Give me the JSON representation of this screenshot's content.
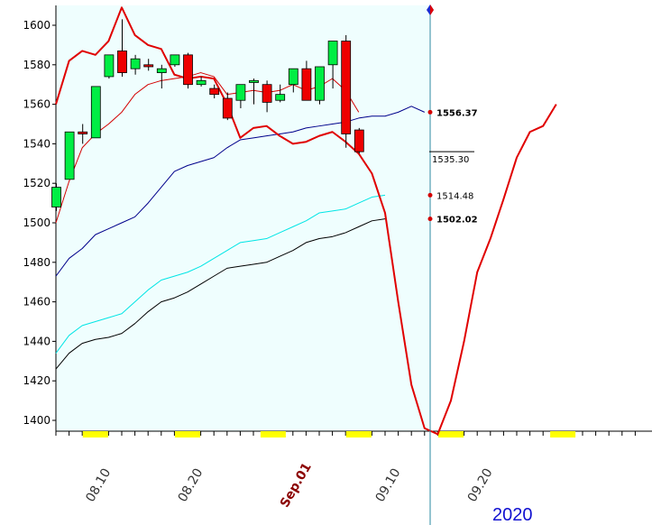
{
  "chart_data": {
    "type": "candlestick",
    "year_label": "2020",
    "y_ticks": [
      1400,
      1420,
      1440,
      1460,
      1480,
      1500,
      1520,
      1540,
      1560,
      1580,
      1600
    ],
    "ylim": [
      1394,
      1610
    ],
    "x_ticks": [
      {
        "label": "08.10",
        "i": 3
      },
      {
        "label": "08.20",
        "i": 10
      },
      {
        "label": "Sep.01",
        "i": 18,
        "month": true
      },
      {
        "label": "09.10",
        "i": 25
      },
      {
        "label": "09.20",
        "i": 32
      }
    ],
    "candles": [
      {
        "o": 1508,
        "h": 1520,
        "l": 1506,
        "c": 1518
      },
      {
        "o": 1522,
        "h": 1546,
        "l": 1522,
        "c": 1546
      },
      {
        "o": 1546,
        "h": 1550,
        "l": 1540,
        "c": 1545
      },
      {
        "o": 1543,
        "h": 1569,
        "l": 1543,
        "c": 1569
      },
      {
        "o": 1574,
        "h": 1585,
        "l": 1573,
        "c": 1585
      },
      {
        "o": 1587,
        "h": 1603,
        "l": 1574,
        "c": 1576
      },
      {
        "o": 1578,
        "h": 1585,
        "l": 1575,
        "c": 1583
      },
      {
        "o": 1580,
        "h": 1583,
        "l": 1577,
        "c": 1579
      },
      {
        "o": 1576,
        "h": 1580,
        "l": 1568,
        "c": 1578
      },
      {
        "o": 1580,
        "h": 1585,
        "l": 1579,
        "c": 1585
      },
      {
        "o": 1585,
        "h": 1586,
        "l": 1568,
        "c": 1570
      },
      {
        "o": 1570,
        "h": 1574,
        "l": 1569,
        "c": 1572
      },
      {
        "o": 1568,
        "h": 1570,
        "l": 1563,
        "c": 1565
      },
      {
        "o": 1563,
        "h": 1566,
        "l": 1552,
        "c": 1553
      },
      {
        "o": 1562,
        "h": 1570,
        "l": 1558,
        "c": 1570
      },
      {
        "o": 1571,
        "h": 1573,
        "l": 1560,
        "c": 1572
      },
      {
        "o": 1570,
        "h": 1572,
        "l": 1556,
        "c": 1561
      },
      {
        "o": 1562,
        "h": 1570,
        "l": 1561,
        "c": 1565
      },
      {
        "o": 1570,
        "h": 1578,
        "l": 1566,
        "c": 1578
      },
      {
        "o": 1578,
        "h": 1582,
        "l": 1562,
        "c": 1562
      },
      {
        "o": 1562,
        "h": 1579,
        "l": 1560,
        "c": 1579
      },
      {
        "o": 1580,
        "h": 1592,
        "l": 1568,
        "c": 1592
      },
      {
        "o": 1592,
        "h": 1595,
        "l": 1538,
        "c": 1545
      },
      {
        "o": 1547,
        "h": 1548,
        "l": 1535,
        "c": 1536
      }
    ],
    "series": [
      {
        "color": "#d40000",
        "width": 1,
        "values": [
          1500,
          1521,
          1538,
          1545,
          1550,
          1556,
          1565,
          1570,
          1572,
          1573,
          1574,
          1576,
          1574,
          1565,
          1566,
          1567,
          1566,
          1567,
          1570,
          1567,
          1569,
          1573,
          1567,
          1556
        ]
      },
      {
        "color": "#00008b",
        "width": 1,
        "values": [
          1473,
          1482,
          1487,
          1494,
          1497,
          1500,
          1503,
          1510,
          1518,
          1526,
          1529,
          1531,
          1533,
          1538,
          1542,
          1543,
          1544,
          1545,
          1546,
          1548,
          1549,
          1550,
          1551,
          1553,
          1554,
          1554,
          1556,
          1559,
          1556
        ]
      },
      {
        "color": "#00e5e5",
        "width": 1,
        "values": [
          1434,
          1443,
          1448,
          1450,
          1452,
          1454,
          1460,
          1466,
          1471,
          1473,
          1475,
          1478,
          1482,
          1486,
          1490,
          1491,
          1492,
          1495,
          1498,
          1501,
          1505,
          1506,
          1507,
          1510,
          1513,
          1514
        ]
      },
      {
        "color": "#000000",
        "width": 1,
        "values": [
          1426,
          1434,
          1439,
          1441,
          1442,
          1444,
          1449,
          1455,
          1460,
          1462,
          1465,
          1469,
          1473,
          1477,
          1478,
          1479,
          1480,
          1483,
          1486,
          1490,
          1492,
          1493,
          1495,
          1498,
          1501,
          1502
        ]
      },
      {
        "color": "#e00000",
        "width": 2,
        "values": [
          1560,
          1582,
          1587,
          1585,
          1592,
          1609,
          1595,
          1590,
          1588,
          1575,
          1573,
          1574,
          1573,
          1560,
          1543,
          1548,
          1549,
          1544,
          1540,
          1541,
          1544,
          1546,
          1541,
          1535,
          1525,
          1505,
          1460,
          1418,
          1396,
          1393,
          1410,
          1440,
          1475,
          1492,
          1512,
          1533,
          1546,
          1549,
          1560
        ]
      }
    ],
    "value_labels": [
      "1556.37",
      "1535.30",
      "1514.48",
      "1502.02"
    ]
  }
}
